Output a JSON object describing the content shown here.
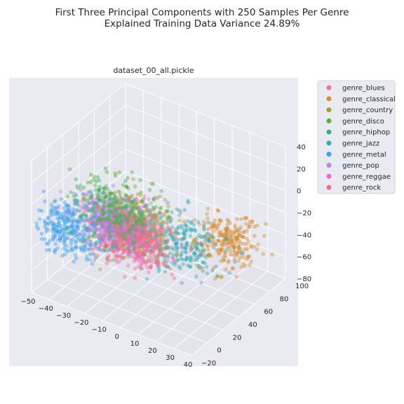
{
  "chart_data": {
    "type": "scatter",
    "title_lines": [
      "First Three Principal Components with 250 Samples Per Genre",
      "Explained Training Data Variance 24.89%"
    ],
    "axes_title": "dataset_00_all.pickle",
    "x_ticks": [
      "−50",
      "−40",
      "−30",
      "−20",
      "−10",
      "0",
      "10",
      "20",
      "30",
      "40"
    ],
    "y_ticks": [
      "−20",
      "0",
      "20",
      "40",
      "60",
      "80",
      "100"
    ],
    "z_ticks": [
      "−80",
      "−60",
      "−40",
      "−20",
      "0",
      "20",
      "40"
    ],
    "xlim": [
      -50,
      40
    ],
    "ylim": [
      -20,
      100
    ],
    "zlim": [
      -80,
      40
    ],
    "grid": true,
    "legend_position": "upper-right-outside",
    "series": [
      {
        "name": "genre_blues",
        "color": "#f77189",
        "center": [
          -2,
          12,
          -22
        ],
        "spread": [
          10,
          9,
          11
        ]
      },
      {
        "name": "genre_classical",
        "color": "#d58c32",
        "center": [
          24,
          62,
          -34
        ],
        "spread": [
          8,
          12,
          10
        ]
      },
      {
        "name": "genre_country",
        "color": "#a4a031",
        "center": [
          -6,
          18,
          -14
        ],
        "spread": [
          10,
          9,
          12
        ]
      },
      {
        "name": "genre_disco",
        "color": "#50b131",
        "center": [
          -14,
          8,
          0
        ],
        "spread": [
          10,
          9,
          13
        ]
      },
      {
        "name": "genre_hiphop",
        "color": "#34ae91",
        "center": [
          -16,
          8,
          -8
        ],
        "spread": [
          10,
          9,
          12
        ]
      },
      {
        "name": "genre_jazz",
        "color": "#37abb5",
        "center": [
          12,
          32,
          -26
        ],
        "spread": [
          11,
          13,
          12
        ]
      },
      {
        "name": "genre_metal",
        "color": "#3ba3ec",
        "center": [
          -36,
          -6,
          -22
        ],
        "spread": [
          8,
          7,
          11
        ]
      },
      {
        "name": "genre_pop",
        "color": "#bb83f4",
        "center": [
          -18,
          6,
          -12
        ],
        "spread": [
          10,
          8,
          11
        ]
      },
      {
        "name": "genre_reggae",
        "color": "#f564d4",
        "center": [
          -8,
          12,
          -14
        ],
        "spread": [
          10,
          9,
          12
        ]
      },
      {
        "name": "genre_rock",
        "color": "#f66c8c",
        "center": [
          -12,
          6,
          -18
        ],
        "spread": [
          9,
          8,
          11
        ]
      }
    ],
    "samples_per_genre": 250,
    "point_alpha": 0.4
  }
}
